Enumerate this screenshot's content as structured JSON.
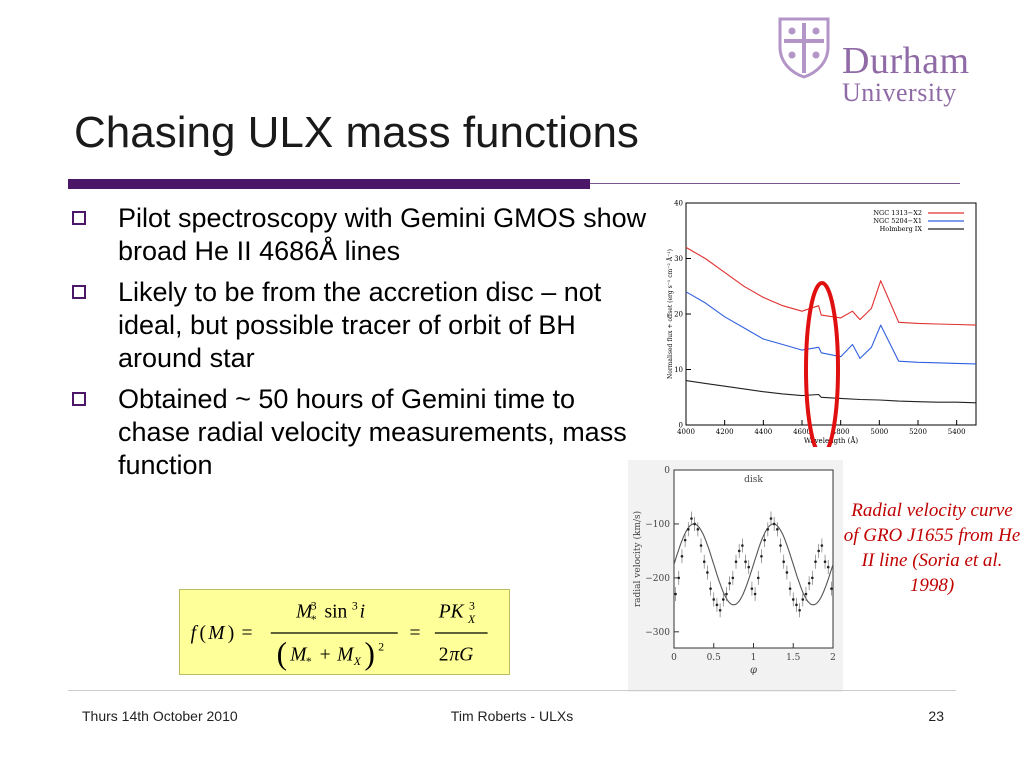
{
  "slide": {
    "title": "Chasing ULX mass functions",
    "logo": {
      "name": "Durham",
      "subname": "University"
    },
    "bullets": [
      "Pilot spectroscopy with Gemini GMOS show broad He II 4686Å lines",
      "Likely to be from the accretion disc – not ideal, but possible tracer of orbit of BH around star",
      "Obtained ~ 50 hours of Gemini time to chase radial velocity measurements, mass function"
    ],
    "caption": "Radial velocity curve of GRO J1655 from He II line (Soria et al. 1998)",
    "accent_color": "#4d1769",
    "caption_color": "#c00000"
  },
  "footer": {
    "date": "Thurs 14th October 2010",
    "author": "Tim Roberts - ULXs",
    "page": "23"
  },
  "chart_data": [
    {
      "type": "line",
      "xlabel": "Wavelength (Å)",
      "ylabel": "Normalised flux + offset (erg s⁻¹ cm⁻² Å⁻¹)",
      "xlim": [
        4000,
        5500
      ],
      "ylim": [
        0,
        40
      ],
      "x_ticks": [
        4000,
        4200,
        4400,
        4600,
        4800,
        5000,
        5200,
        5400
      ],
      "y_ticks": [
        0,
        10,
        20,
        30,
        40
      ],
      "legend_position": "top-right",
      "series": [
        {
          "name": "NGC 1313−X2",
          "color": "#e03030",
          "x": [
            4000,
            4100,
            4200,
            4300,
            4400,
            4500,
            4600,
            4686,
            4700,
            4800,
            4861,
            4900,
            4959,
            5007,
            5100,
            5200,
            5300,
            5400,
            5500
          ],
          "y": [
            32,
            30,
            27.5,
            25,
            23,
            21.5,
            20.5,
            21.5,
            19.8,
            19.3,
            20.5,
            19,
            21,
            26,
            18.5,
            18.3,
            18.2,
            18.1,
            18
          ]
        },
        {
          "name": "NGC 5204−X1",
          "color": "#3060e0",
          "x": [
            4000,
            4100,
            4200,
            4300,
            4400,
            4500,
            4600,
            4686,
            4700,
            4800,
            4861,
            4900,
            4959,
            5007,
            5100,
            5200,
            5300,
            5400,
            5500
          ],
          "y": [
            24,
            22,
            19.5,
            17.5,
            15.5,
            14.5,
            13.5,
            14,
            13,
            12.3,
            14.5,
            12,
            14,
            18,
            11.5,
            11.3,
            11.2,
            11.1,
            11
          ]
        },
        {
          "name": "Holmberg IX",
          "color": "#222222",
          "x": [
            4000,
            4100,
            4200,
            4300,
            4400,
            4500,
            4600,
            4686,
            4700,
            4800,
            4900,
            5000,
            5100,
            5200,
            5300,
            5400,
            5500
          ],
          "y": [
            8,
            7.5,
            7,
            6.5,
            6,
            5.6,
            5.3,
            5.5,
            5,
            4.8,
            4.6,
            4.5,
            4.3,
            4.2,
            4.1,
            4.1,
            4
          ]
        }
      ]
    },
    {
      "type": "scatter",
      "label": "disk",
      "xlabel": "φ",
      "ylabel": "radial velocity (km/s)",
      "xlim": [
        0,
        2
      ],
      "ylim": [
        -330,
        0
      ],
      "x_ticks": [
        0,
        0.5,
        1,
        1.5,
        2
      ],
      "x_tick_labels": [
        "0",
        "0.5",
        "1",
        "1.5",
        "2"
      ],
      "y_ticks": [
        0,
        -100,
        -200,
        -300
      ],
      "y_tick_labels": [
        "0",
        "−100",
        "−200",
        "−300"
      ],
      "model": {
        "mean": -175,
        "amplitude": 75,
        "peak_phase": 0.25
      },
      "points": {
        "x": [
          0.02,
          0.06,
          0.1,
          0.14,
          0.18,
          0.22,
          0.26,
          0.3,
          0.34,
          0.38,
          0.42,
          0.46,
          0.5,
          0.54,
          0.58,
          0.62,
          0.66,
          0.7,
          0.74,
          0.78,
          0.82,
          0.86,
          0.9,
          0.94,
          0.98
        ],
        "y": [
          -230,
          -200,
          -160,
          -130,
          -110,
          -90,
          -100,
          -110,
          -140,
          -170,
          -190,
          -220,
          -240,
          -250,
          -260,
          -240,
          -230,
          -210,
          -200,
          -170,
          -150,
          -140,
          -170,
          -180,
          -220
        ]
      }
    }
  ]
}
